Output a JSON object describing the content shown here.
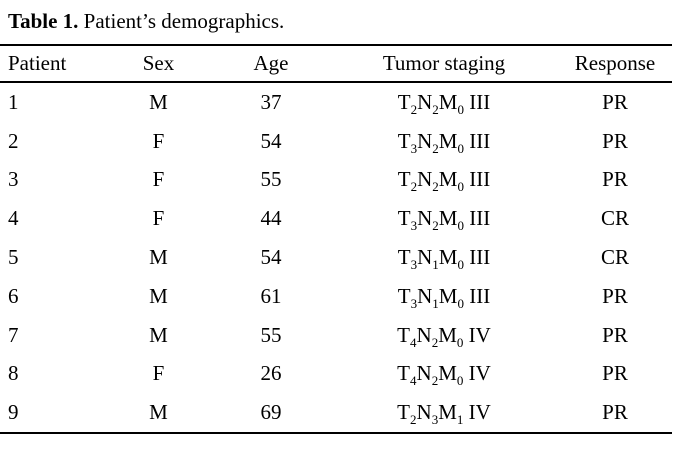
{
  "page": {
    "background": "#ffffff",
    "text_color": "#000000",
    "rule_color": "#000000"
  },
  "title": {
    "bold": "Table 1.",
    "rest": " Patient’s demographics."
  },
  "table": {
    "headers": [
      "Patient",
      "Sex",
      "Age",
      "Tumor staging",
      "Response"
    ],
    "rows": [
      {
        "patient": "1",
        "sex": "M",
        "age": "37",
        "staging": "T2N2M0 III",
        "response": "PR"
      },
      {
        "patient": "2",
        "sex": "F",
        "age": "54",
        "staging": "T3N2M0 III",
        "response": "PR"
      },
      {
        "patient": "3",
        "sex": "F",
        "age": "55",
        "staging": "T2N2M0 III",
        "response": "PR"
      },
      {
        "patient": "4",
        "sex": "F",
        "age": "44",
        "staging": "T3N2M0 III",
        "response": "CR"
      },
      {
        "patient": "5",
        "sex": "M",
        "age": "54",
        "staging": "T3N1M0 III",
        "response": "CR"
      },
      {
        "patient": "6",
        "sex": "M",
        "age": "61",
        "staging": "T3N1M0 III",
        "response": "PR"
      },
      {
        "patient": "7",
        "sex": "M",
        "age": "55",
        "staging": "T4N2M0 IV",
        "response": "PR"
      },
      {
        "patient": "8",
        "sex": "F",
        "age": "26",
        "staging": "T4N2M0 IV",
        "response": "PR"
      },
      {
        "patient": "9",
        "sex": "M",
        "age": "69",
        "staging": "T2N3M1 IV",
        "response": "PR"
      }
    ]
  }
}
